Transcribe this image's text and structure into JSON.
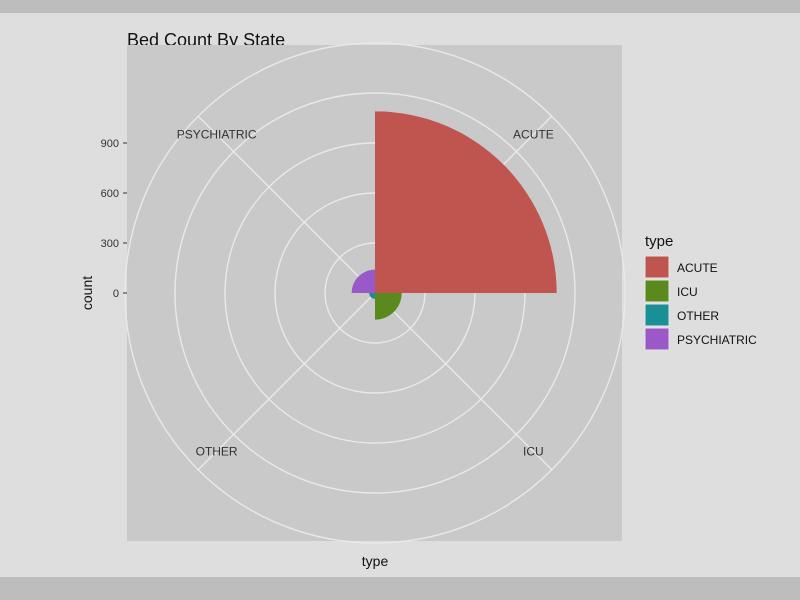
{
  "chart_data": {
    "type": "pie",
    "subtype": "polar-coxcomb",
    "title": "Bed Count By State",
    "xlabel": "type",
    "ylabel": "count",
    "categories": [
      "ACUTE",
      "ICU",
      "OTHER",
      "PSYCHIATRIC"
    ],
    "values": [
      1090,
      160,
      35,
      140
    ],
    "colors": [
      "#c0544f",
      "#5a8a1e",
      "#1a8f96",
      "#9a58c8"
    ],
    "radial_ticks": [
      0,
      300,
      600,
      900
    ],
    "radial_range": [
      0,
      1200
    ],
    "legend": {
      "title": "type",
      "position": "right"
    },
    "grid": true
  }
}
